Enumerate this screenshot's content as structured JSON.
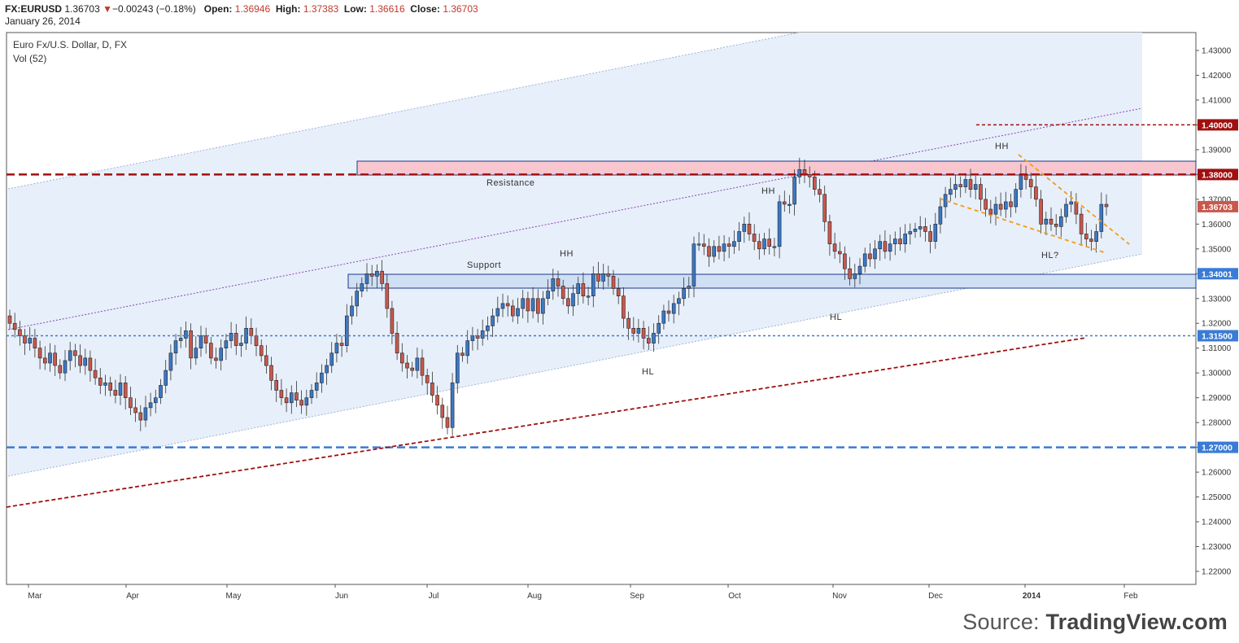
{
  "header": {
    "symbol": "FX:EURUSD",
    "last": "1.36703",
    "arrow": "▼",
    "change": "−0.00243 (−0.18%)",
    "open_label": "Open:",
    "open": "1.36946",
    "high_label": "High:",
    "high": "1.37383",
    "low_label": "Low:",
    "low": "1.36616",
    "close_label": "Close:",
    "close": "1.36703",
    "date": "January 26, 2014"
  },
  "chart": {
    "title": "Euro Fx/U.S. Dollar, D, FX",
    "subtitle": "Vol (52)"
  },
  "source": {
    "prefix": "Source: ",
    "brand": "TradingView.com"
  },
  "colors": {
    "up": "#3b78c6",
    "down": "#c9584c",
    "channel_fill": "#e7effa",
    "resistance_zone": "#f7c6cf",
    "support_zone": "#cfdff4",
    "dark_red": "#a01010",
    "blue": "#3a7bd5",
    "orange": "#f39c12",
    "purple": "#8e44ad"
  },
  "chart_data": {
    "type": "candlestick",
    "ylim": [
      1.215,
      1.437
    ],
    "y_ticks": [
      "1.43000",
      "1.42000",
      "1.41000",
      "1.40000",
      "1.39000",
      "1.38000",
      "1.37000",
      "1.36000",
      "1.35000",
      "1.34000",
      "1.33000",
      "1.32000",
      "1.31000",
      "1.30000",
      "1.29000",
      "1.28000",
      "1.27000",
      "1.26000",
      "1.25000",
      "1.24000",
      "1.23000",
      "1.22000"
    ],
    "x_labels": [
      "Mar",
      "Apr",
      "May",
      "Jun",
      "Jul",
      "Aug",
      "Sep",
      "Oct",
      "Nov",
      "Dec",
      "2014",
      "Feb"
    ],
    "price_tags": [
      {
        "value": 1.4,
        "label": "1.40000",
        "color": "#a01010"
      },
      {
        "value": 1.38,
        "label": "1.38000",
        "color": "#a01010"
      },
      {
        "value": 1.36703,
        "label": "1.36703",
        "color": "#c9584c"
      },
      {
        "value": 1.34001,
        "label": "1.34001",
        "color": "#3a7bd5"
      },
      {
        "value": 1.315,
        "label": "1.31500",
        "color": "#3a7bd5"
      },
      {
        "value": 1.27,
        "label": "1.27000",
        "color": "#3a7bd5"
      }
    ],
    "annotations": [
      {
        "text": "Resistance"
      },
      {
        "text": "Support"
      },
      {
        "text": "HH"
      },
      {
        "text": "HH"
      },
      {
        "text": "HH"
      },
      {
        "text": "HL"
      },
      {
        "text": "HL"
      },
      {
        "text": "HL?"
      }
    ],
    "closes": [
      1.32,
      1.3175,
      1.315,
      1.312,
      1.314,
      1.31,
      1.306,
      1.304,
      1.308,
      1.303,
      1.3,
      1.305,
      1.309,
      1.307,
      1.303,
      1.306,
      1.301,
      1.298,
      1.295,
      1.296,
      1.293,
      1.291,
      1.296,
      1.29,
      1.286,
      1.284,
      1.281,
      1.286,
      1.288,
      1.29,
      1.295,
      1.301,
      1.308,
      1.313,
      1.314,
      1.317,
      1.306,
      1.31,
      1.315,
      1.312,
      1.306,
      1.305,
      1.31,
      1.313,
      1.316,
      1.311,
      1.312,
      1.318,
      1.315,
      1.311,
      1.307,
      1.303,
      1.297,
      1.293,
      1.29,
      1.288,
      1.292,
      1.289,
      1.287,
      1.29,
      1.293,
      1.296,
      1.3,
      1.303,
      1.308,
      1.312,
      1.311,
      1.323,
      1.327,
      1.333,
      1.336,
      1.34,
      1.339,
      1.341,
      1.336,
      1.326,
      1.316,
      1.308,
      1.304,
      1.302,
      1.301,
      1.306,
      1.299,
      1.296,
      1.291,
      1.287,
      1.282,
      1.278,
      1.296,
      1.308,
      1.307,
      1.313,
      1.315,
      1.314,
      1.317,
      1.319,
      1.323,
      1.326,
      1.328,
      1.327,
      1.323,
      1.326,
      1.33,
      1.325,
      1.33,
      1.324,
      1.33,
      1.333,
      1.338,
      1.335,
      1.33,
      1.327,
      1.332,
      1.336,
      1.331,
      1.331,
      1.34,
      1.337,
      1.34,
      1.339,
      1.334,
      1.331,
      1.322,
      1.318,
      1.316,
      1.318,
      1.314,
      1.312,
      1.316,
      1.32,
      1.325,
      1.324,
      1.328,
      1.33,
      1.334,
      1.335,
      1.352,
      1.352,
      1.351,
      1.347,
      1.351,
      1.349,
      1.352,
      1.351,
      1.353,
      1.357,
      1.36,
      1.356,
      1.353,
      1.35,
      1.354,
      1.351,
      1.351,
      1.369,
      1.368,
      1.368,
      1.379,
      1.382,
      1.38,
      1.379,
      1.374,
      1.372,
      1.361,
      1.352,
      1.349,
      1.348,
      1.342,
      1.338,
      1.34,
      1.343,
      1.348,
      1.346,
      1.35,
      1.353,
      1.349,
      1.352,
      1.354,
      1.352,
      1.356,
      1.357,
      1.358,
      1.359,
      1.357,
      1.353,
      1.36,
      1.367,
      1.372,
      1.374,
      1.376,
      1.375,
      1.378,
      1.374,
      1.376,
      1.37,
      1.366,
      1.364,
      1.368,
      1.366,
      1.369,
      1.367,
      1.374,
      1.38,
      1.378,
      1.375,
      1.37,
      1.36,
      1.362,
      1.36,
      1.359,
      1.363,
      1.368,
      1.369,
      1.364,
      1.356,
      1.354,
      1.353,
      1.357,
      1.368,
      1.367
    ]
  }
}
